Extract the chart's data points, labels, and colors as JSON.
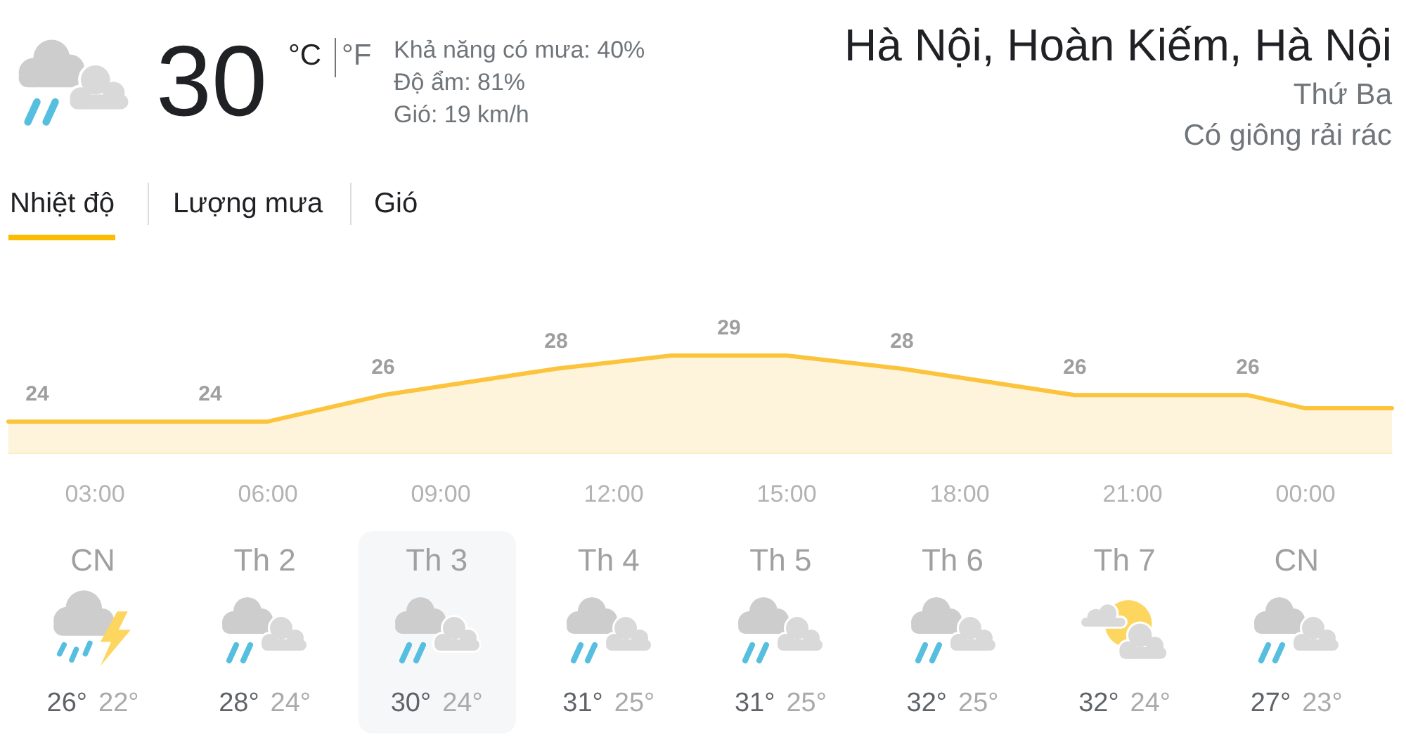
{
  "chart_data": [
    {
      "type": "other",
      "title": "Hà Nội, Hoàn Kiếm, Hà Nội",
      "subtitle": "Thứ Ba",
      "annotations": [
        "30",
        "°C",
        "°F",
        "Khả năng có mưa: 40%",
        "Độ ẩm: 81%",
        "Gió: 19 km/h",
        "Có giông rải rác",
        "Nhiệt độ",
        "Lượng mưa",
        "Gió"
      ]
    },
    {
      "type": "area",
      "x": [
        1.5,
        2,
        5,
        6,
        8,
        11,
        13,
        14,
        15,
        17,
        20,
        23,
        24,
        25.5
      ],
      "values": [
        24,
        24,
        24,
        24,
        26,
        28,
        29,
        29,
        29,
        28,
        26,
        26,
        25,
        25
      ],
      "value_labels": [
        null,
        "24",
        "24",
        null,
        "26",
        "28",
        null,
        "29",
        null,
        "28",
        "26",
        "26",
        null,
        null
      ],
      "color": "#fbc43c",
      "xlim": [
        1.5,
        25.5
      ],
      "xticks": [
        {
          "value": 3,
          "label": "03:00"
        },
        {
          "value": 6,
          "label": "06:00"
        },
        {
          "value": 9,
          "label": "09:00"
        },
        {
          "value": 12,
          "label": "12:00"
        },
        {
          "value": 15,
          "label": "15:00"
        },
        {
          "value": 18,
          "label": "18:00"
        },
        {
          "value": 21,
          "label": "21:00"
        },
        {
          "value": 24,
          "label": "00:00"
        }
      ],
      "tick_labels": "x",
      "marker": "none"
    },
    {
      "type": "other",
      "categories": [
        "CN",
        "Th 2",
        "Th 3",
        "Th 4",
        "Th 5",
        "Th 6",
        "Th 7",
        "CN"
      ],
      "annotations": [
        "26°",
        "22°",
        "28°",
        "24°",
        "30°",
        "24°",
        "31°",
        "25°",
        "31°",
        "25°",
        "32°",
        "25°",
        "32°",
        "24°",
        "27°",
        "23°"
      ]
    }
  ]
}
